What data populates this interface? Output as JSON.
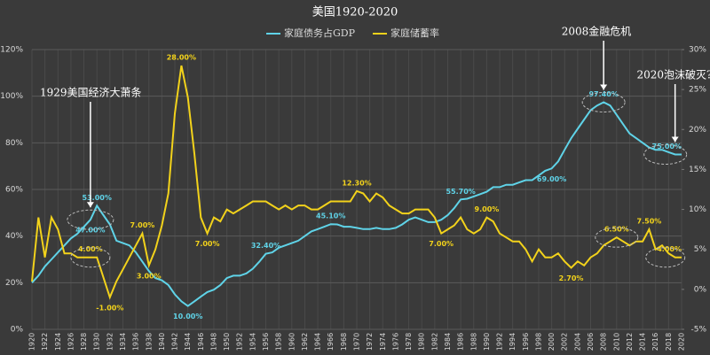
{
  "chart_data": {
    "type": "line",
    "title": "美国1920-2020",
    "x": [
      1920,
      1921,
      1922,
      1923,
      1924,
      1925,
      1926,
      1927,
      1928,
      1929,
      1930,
      1931,
      1932,
      1933,
      1934,
      1935,
      1936,
      1937,
      1938,
      1939,
      1940,
      1941,
      1942,
      1943,
      1944,
      1945,
      1946,
      1947,
      1948,
      1949,
      1950,
      1951,
      1952,
      1953,
      1954,
      1955,
      1956,
      1957,
      1958,
      1959,
      1960,
      1961,
      1962,
      1963,
      1964,
      1965,
      1966,
      1967,
      1968,
      1969,
      1970,
      1971,
      1972,
      1973,
      1974,
      1975,
      1976,
      1977,
      1978,
      1979,
      1980,
      1981,
      1982,
      1983,
      1984,
      1985,
      1986,
      1987,
      1988,
      1989,
      1990,
      1991,
      1992,
      1993,
      1994,
      1995,
      1996,
      1997,
      1998,
      1999,
      2000,
      2001,
      2002,
      2003,
      2004,
      2005,
      2006,
      2007,
      2008,
      2009,
      2010,
      2011,
      2012,
      2013,
      2014,
      2015,
      2016,
      2017,
      2018,
      2019,
      2020
    ],
    "series": [
      {
        "name": "家庭债务占GDP",
        "color": "#5fd3e8",
        "axis": "y",
        "values": [
          20,
          23,
          27,
          30,
          33,
          36,
          39,
          41,
          44,
          47,
          53,
          49,
          45,
          38,
          37,
          36,
          33,
          29,
          25,
          22,
          21,
          19,
          15,
          12,
          10,
          12,
          14,
          16,
          17,
          19,
          22,
          23,
          23,
          24,
          26,
          29,
          32.4,
          33,
          35,
          36,
          37,
          38,
          40,
          42,
          43,
          44,
          45.1,
          45,
          44,
          44,
          43.5,
          43,
          43,
          43.5,
          43,
          43,
          43.5,
          45,
          47,
          48,
          47,
          46,
          46,
          47,
          49,
          52,
          55.7,
          56,
          57,
          58,
          59,
          61,
          61,
          62,
          62,
          63,
          64,
          64,
          66,
          68,
          69,
          72,
          77,
          82,
          86,
          90,
          94,
          96,
          97.4,
          96,
          92,
          88,
          84,
          82,
          80,
          78,
          77,
          77,
          76,
          75,
          75
        ],
        "value_labels": [
          null,
          null,
          null,
          null,
          null,
          null,
          null,
          null,
          null,
          "47.00%",
          "53.00%",
          null,
          null,
          null,
          null,
          null,
          null,
          null,
          null,
          null,
          null,
          null,
          null,
          null,
          "10.00%",
          null,
          null,
          null,
          null,
          null,
          null,
          null,
          null,
          null,
          null,
          null,
          "32.40%",
          null,
          null,
          null,
          null,
          null,
          null,
          null,
          null,
          null,
          "45.10%",
          null,
          null,
          null,
          null,
          null,
          null,
          null,
          null,
          null,
          null,
          null,
          null,
          null,
          null,
          null,
          null,
          null,
          null,
          null,
          "55.70%",
          null,
          null,
          null,
          null,
          null,
          null,
          null,
          null,
          null,
          null,
          null,
          null,
          null,
          "69.00%",
          null,
          null,
          null,
          null,
          null,
          null,
          null,
          "97.40%",
          null,
          null,
          null,
          null,
          null,
          null,
          null,
          null,
          null,
          null,
          null,
          "75.00%"
        ]
      },
      {
        "name": "家庭储蓄率",
        "color": "#f2d21b",
        "axis": "y2",
        "values": [
          1,
          9,
          4,
          9,
          7.5,
          4.5,
          4.5,
          4,
          4,
          4,
          4,
          1.5,
          -1,
          1,
          2.5,
          4,
          5.5,
          7,
          3,
          5,
          8,
          12,
          22,
          28,
          24,
          17,
          9,
          7,
          9,
          8.5,
          10,
          9.5,
          10,
          10.5,
          11,
          11,
          11,
          10.5,
          10,
          10.5,
          10,
          10.5,
          10.5,
          10,
          10,
          10.5,
          11,
          11,
          11,
          11,
          12.3,
          12,
          11,
          12,
          11.5,
          10.5,
          10,
          9.5,
          9.5,
          10,
          10,
          10,
          9,
          7,
          7.5,
          8,
          9,
          7.5,
          7,
          7.5,
          9,
          8.5,
          7,
          6.5,
          6,
          6,
          5,
          3.5,
          5,
          4,
          4,
          4.5,
          3.5,
          2.7,
          3.5,
          3,
          4,
          4.5,
          5.5,
          6,
          6.5,
          6,
          5.5,
          6,
          6,
          7.5,
          5,
          5.5,
          4.5,
          4,
          4
        ],
        "value_labels": [
          null,
          null,
          null,
          null,
          null,
          null,
          null,
          null,
          null,
          "4.00%",
          null,
          null,
          "-1.00%",
          null,
          null,
          null,
          null,
          "7.00%",
          "3.00%",
          null,
          null,
          null,
          null,
          "28.00%",
          null,
          null,
          null,
          "7.00%",
          null,
          null,
          null,
          null,
          null,
          null,
          null,
          null,
          null,
          null,
          null,
          null,
          null,
          null,
          null,
          null,
          null,
          null,
          null,
          null,
          null,
          null,
          "12.30%",
          null,
          null,
          null,
          null,
          null,
          null,
          null,
          null,
          null,
          null,
          null,
          null,
          "7.00%",
          null,
          null,
          null,
          null,
          null,
          null,
          "9.00%",
          null,
          null,
          null,
          null,
          null,
          null,
          null,
          null,
          null,
          null,
          null,
          null,
          "2.70%",
          null,
          null,
          null,
          null,
          null,
          null,
          "6.50%",
          null,
          null,
          null,
          null,
          "7.50%",
          null,
          null,
          null,
          null,
          "4.00%"
        ]
      }
    ],
    "xlim": [
      1920,
      2020
    ],
    "xticks": [
      1920,
      1922,
      1924,
      1926,
      1928,
      1930,
      1932,
      1934,
      1936,
      1938,
      1940,
      1942,
      1944,
      1946,
      1948,
      1950,
      1952,
      1954,
      1956,
      1958,
      1960,
      1962,
      1964,
      1966,
      1968,
      1970,
      1972,
      1974,
      1976,
      1978,
      1980,
      1982,
      1984,
      1986,
      1988,
      1990,
      1992,
      1994,
      1996,
      1998,
      2000,
      2002,
      2004,
      2006,
      2008,
      2010,
      2012,
      2014,
      2016,
      2018,
      2020
    ],
    "ylim": [
      0,
      120
    ],
    "yticks": [
      {
        "value": 0,
        "label": "0%"
      },
      {
        "value": 20,
        "label": "20%"
      },
      {
        "value": 40,
        "label": "40%"
      },
      {
        "value": 60,
        "label": "60%"
      },
      {
        "value": 80,
        "label": "80%"
      },
      {
        "value": 100,
        "label": "100%"
      },
      {
        "value": 120,
        "label": "120%"
      }
    ],
    "y2lim": [
      -5,
      30
    ],
    "y2ticks": [
      {
        "value": -5,
        "label": "-5%"
      },
      {
        "value": 0,
        "label": "0%"
      },
      {
        "value": 5,
        "label": "5%"
      },
      {
        "value": 10,
        "label": "10%"
      },
      {
        "value": 15,
        "label": "15%"
      },
      {
        "value": 20,
        "label": "20%"
      },
      {
        "value": 25,
        "label": "25%"
      },
      {
        "value": 30,
        "label": "30%"
      }
    ],
    "grid": true,
    "annotations": [
      "1929美国经济大萧条",
      "2008金融危机",
      "2020泡沫破灭?"
    ]
  }
}
